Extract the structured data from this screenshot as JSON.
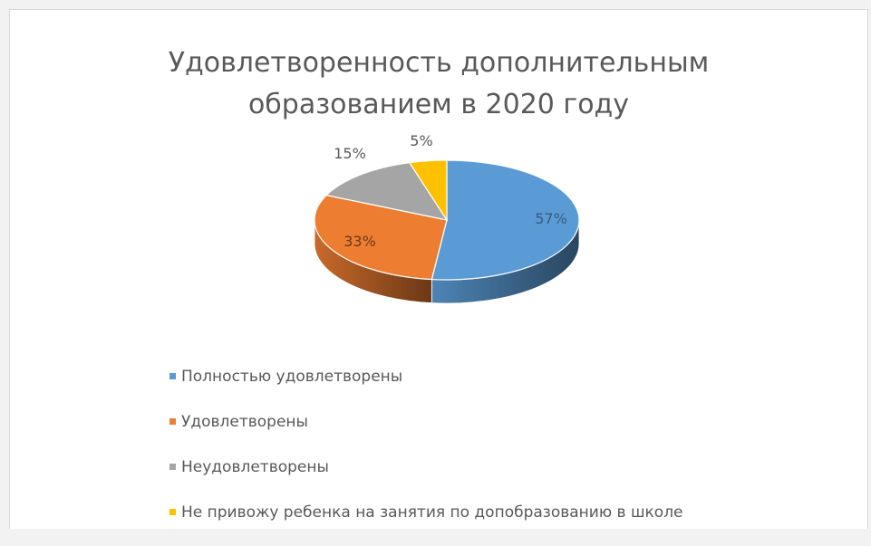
{
  "chart_data": {
    "type": "pie",
    "title": "Удовлетворенность дополнительным образованием в 2020 году",
    "title_lines": [
      "Удовлетворенность дополнительным",
      "образованием в 2020 году"
    ],
    "style": "3d",
    "legend_position": "bottom",
    "slices": [
      {
        "label": "Полностью удовлетворены",
        "value": 57,
        "display": "57%",
        "color": "#5b9bd5"
      },
      {
        "label": "Удовлетворены",
        "value": 33,
        "display": "33%",
        "color": "#ed7d31"
      },
      {
        "label": "Неудовлетворены",
        "value": 15,
        "display": "15%",
        "color": "#a5a5a5"
      },
      {
        "label": "Не привожу ребенка на занятия по допобразованию в школе",
        "value": 5,
        "display": "5%",
        "color": "#ffc000"
      }
    ]
  }
}
